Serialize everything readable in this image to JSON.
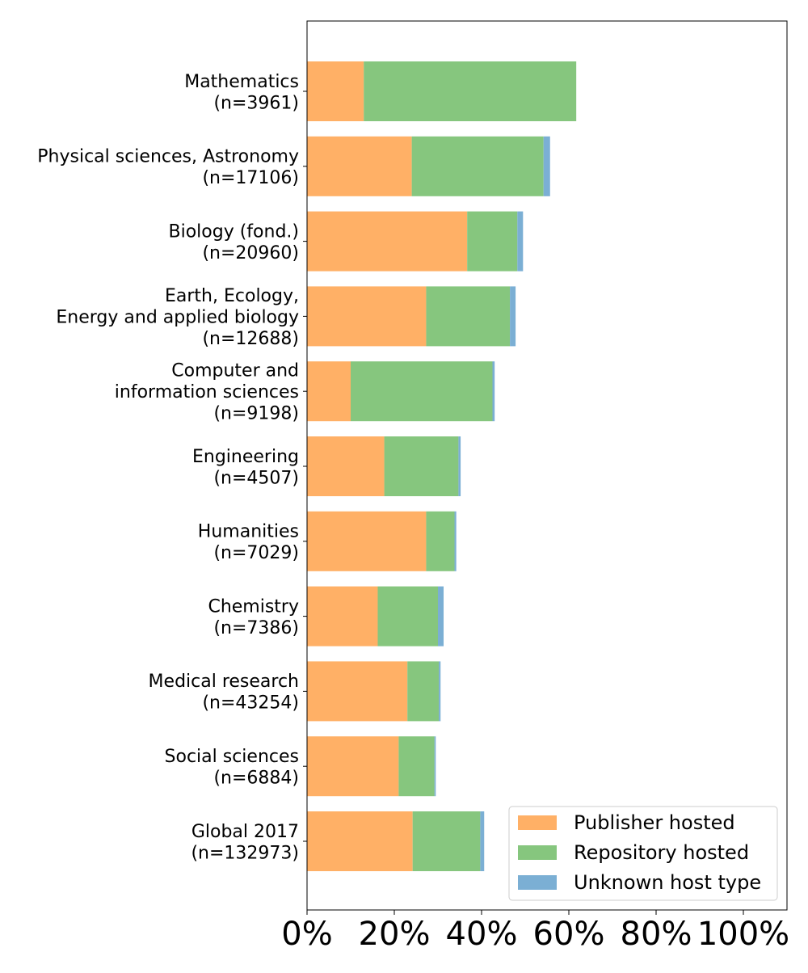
{
  "chart_data": {
    "type": "bar",
    "orientation": "horizontal",
    "stacked": true,
    "title": "",
    "xlabel": "",
    "ylabel": "",
    "xlim": [
      0,
      110
    ],
    "x_tick_values": [
      0,
      20,
      40,
      60,
      80,
      100
    ],
    "x_tick_labels": [
      "0%",
      "20%",
      "40%",
      "60%",
      "80%",
      "100%"
    ],
    "grid": false,
    "legend_position": "lower-right",
    "categories": [
      [
        "Mathematics",
        "(n=3961)"
      ],
      [
        "Physical sciences, Astronomy",
        "(n=17106)"
      ],
      [
        "Biology (fond.)",
        "(n=20960)"
      ],
      [
        "Earth, Ecology,",
        "Energy and applied biology",
        "(n=12688)"
      ],
      [
        "Computer and",
        "information sciences",
        "(n=9198)"
      ],
      [
        "Engineering",
        "(n=4507)"
      ],
      [
        "Humanities",
        "(n=7029)"
      ],
      [
        "Chemistry",
        "(n=7386)"
      ],
      [
        "Medical research",
        "(n=43254)"
      ],
      [
        "Social sciences",
        "(n=6884)"
      ],
      [
        "Global 2017",
        "(n=132973)"
      ]
    ],
    "series": [
      {
        "name": "Publisher hosted",
        "color": "#ffb066",
        "values": [
          13.0,
          24.0,
          36.7,
          27.3,
          10.0,
          17.7,
          27.3,
          16.2,
          23.0,
          21.0,
          24.2
        ]
      },
      {
        "name": "Repository hosted",
        "color": "#86c67e",
        "values": [
          48.7,
          30.2,
          11.5,
          19.2,
          32.5,
          17.0,
          6.5,
          13.8,
          7.2,
          8.2,
          15.5
        ]
      },
      {
        "name": "Unknown host type",
        "color": "#7bafd4",
        "values": [
          0.0,
          1.5,
          1.3,
          1.3,
          0.5,
          0.5,
          0.4,
          1.3,
          0.4,
          0.3,
          0.9
        ]
      }
    ]
  }
}
